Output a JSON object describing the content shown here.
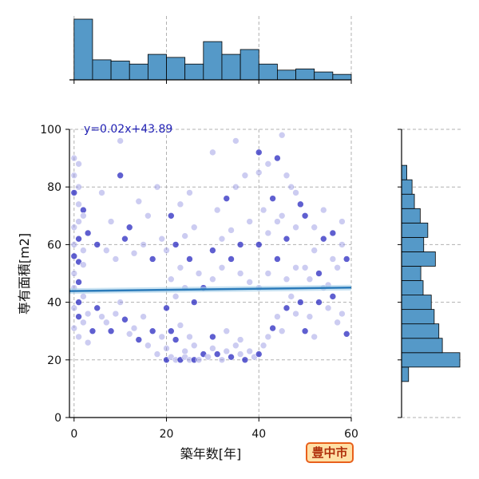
{
  "chart_data": {
    "type": "scatter",
    "xlabel": "築年数[年]",
    "ylabel": "専有面積[m2]",
    "xlim": [
      -1,
      60
    ],
    "ylim": [
      0,
      100
    ],
    "x_ticks": [
      0,
      20,
      40,
      60
    ],
    "y_ticks": [
      0,
      20,
      40,
      60,
      80,
      100
    ],
    "grid": true,
    "regression": {
      "equation": "y=0.02x+43.89",
      "slope": 0.02,
      "intercept": 43.89
    },
    "scatter_color": "#3b3bd4",
    "line_color": "#2b7bba",
    "hist_color": "#5599c8",
    "x_histogram": {
      "bin_edges": [
        0,
        4,
        8,
        12,
        16,
        20,
        24,
        28,
        32,
        36,
        40,
        44,
        48,
        52,
        56,
        60
      ],
      "relative_heights": [
        1.0,
        0.33,
        0.31,
        0.26,
        0.42,
        0.37,
        0.26,
        0.63,
        0.42,
        0.5,
        0.26,
        0.16,
        0.18,
        0.13,
        0.09
      ]
    },
    "y_histogram": {
      "bin_edges": [
        12.5,
        17.5,
        22.5,
        27.5,
        32.5,
        37.5,
        42.5,
        47.5,
        52.5,
        57.5,
        62.5,
        67.5,
        72.5,
        77.5,
        82.5,
        87.5
      ],
      "relative_widths": [
        0.12,
        1.0,
        0.7,
        0.64,
        0.56,
        0.51,
        0.37,
        0.33,
        0.58,
        0.38,
        0.45,
        0.32,
        0.22,
        0.18,
        0.09
      ]
    },
    "points": [
      [
        1,
        54
      ],
      [
        2,
        53
      ],
      [
        0,
        50
      ],
      [
        1,
        47
      ],
      [
        0,
        45
      ],
      [
        2,
        42
      ],
      [
        1,
        40
      ],
      [
        0,
        38
      ],
      [
        3,
        36
      ],
      [
        1,
        35
      ],
      [
        2,
        33
      ],
      [
        0,
        31
      ],
      [
        4,
        30
      ],
      [
        1,
        28
      ],
      [
        3,
        26
      ],
      [
        0,
        78
      ],
      [
        1,
        80
      ],
      [
        0,
        84
      ],
      [
        2,
        72
      ],
      [
        1,
        68
      ],
      [
        0,
        66
      ],
      [
        1,
        62
      ],
      [
        0,
        60
      ],
      [
        2,
        58
      ],
      [
        0,
        56
      ],
      [
        1,
        88
      ],
      [
        0,
        90
      ],
      [
        3,
        64
      ],
      [
        2,
        70
      ],
      [
        1,
        74
      ],
      [
        5,
        38
      ],
      [
        6,
        35
      ],
      [
        7,
        33
      ],
      [
        8,
        30
      ],
      [
        9,
        36
      ],
      [
        10,
        40
      ],
      [
        11,
        34
      ],
      [
        12,
        29
      ],
      [
        13,
        31
      ],
      [
        14,
        27
      ],
      [
        15,
        35
      ],
      [
        16,
        25
      ],
      [
        17,
        30
      ],
      [
        18,
        22
      ],
      [
        19,
        28
      ],
      [
        5,
        60
      ],
      [
        7,
        58
      ],
      [
        9,
        55
      ],
      [
        11,
        62
      ],
      [
        13,
        57
      ],
      [
        15,
        60
      ],
      [
        17,
        55
      ],
      [
        19,
        62
      ],
      [
        8,
        68
      ],
      [
        12,
        66
      ],
      [
        16,
        70
      ],
      [
        6,
        78
      ],
      [
        10,
        84
      ],
      [
        14,
        75
      ],
      [
        18,
        80
      ],
      [
        20,
        20
      ],
      [
        21,
        21
      ],
      [
        22,
        20
      ],
      [
        23,
        20
      ],
      [
        24,
        21
      ],
      [
        25,
        20
      ],
      [
        26,
        20
      ],
      [
        27,
        20
      ],
      [
        20,
        24
      ],
      [
        22,
        27
      ],
      [
        24,
        23
      ],
      [
        26,
        25
      ],
      [
        21,
        30
      ],
      [
        23,
        32
      ],
      [
        25,
        28
      ],
      [
        20,
        38
      ],
      [
        22,
        42
      ],
      [
        24,
        45
      ],
      [
        26,
        40
      ],
      [
        21,
        48
      ],
      [
        23,
        52
      ],
      [
        25,
        55
      ],
      [
        27,
        50
      ],
      [
        20,
        58
      ],
      [
        22,
        60
      ],
      [
        24,
        63
      ],
      [
        26,
        66
      ],
      [
        21,
        70
      ],
      [
        23,
        74
      ],
      [
        25,
        78
      ],
      [
        28,
        22
      ],
      [
        29,
        21
      ],
      [
        30,
        24
      ],
      [
        31,
        22
      ],
      [
        32,
        20
      ],
      [
        33,
        23
      ],
      [
        34,
        21
      ],
      [
        35,
        25
      ],
      [
        36,
        22
      ],
      [
        37,
        20
      ],
      [
        38,
        23
      ],
      [
        39,
        21
      ],
      [
        30,
        28
      ],
      [
        33,
        30
      ],
      [
        36,
        27
      ],
      [
        28,
        45
      ],
      [
        30,
        48
      ],
      [
        32,
        52
      ],
      [
        34,
        55
      ],
      [
        36,
        50
      ],
      [
        38,
        47
      ],
      [
        30,
        58
      ],
      [
        32,
        62
      ],
      [
        34,
        65
      ],
      [
        36,
        60
      ],
      [
        38,
        68
      ],
      [
        31,
        72
      ],
      [
        33,
        76
      ],
      [
        35,
        80
      ],
      [
        37,
        84
      ],
      [
        40,
        22
      ],
      [
        41,
        25
      ],
      [
        42,
        28
      ],
      [
        43,
        31
      ],
      [
        44,
        35
      ],
      [
        45,
        30
      ],
      [
        46,
        38
      ],
      [
        47,
        42
      ],
      [
        48,
        36
      ],
      [
        49,
        40
      ],
      [
        40,
        45
      ],
      [
        42,
        50
      ],
      [
        44,
        55
      ],
      [
        46,
        48
      ],
      [
        48,
        52
      ],
      [
        40,
        60
      ],
      [
        42,
        64
      ],
      [
        44,
        68
      ],
      [
        46,
        62
      ],
      [
        48,
        66
      ],
      [
        41,
        72
      ],
      [
        43,
        76
      ],
      [
        45,
        70
      ],
      [
        47,
        80
      ],
      [
        49,
        74
      ],
      [
        40,
        85
      ],
      [
        42,
        88
      ],
      [
        44,
        90
      ],
      [
        46,
        84
      ],
      [
        48,
        78
      ],
      [
        50,
        30
      ],
      [
        51,
        35
      ],
      [
        52,
        28
      ],
      [
        53,
        40
      ],
      [
        54,
        45
      ],
      [
        55,
        38
      ],
      [
        56,
        42
      ],
      [
        57,
        33
      ],
      [
        58,
        36
      ],
      [
        59,
        29
      ],
      [
        50,
        52
      ],
      [
        52,
        58
      ],
      [
        54,
        62
      ],
      [
        56,
        55
      ],
      [
        58,
        60
      ],
      [
        50,
        70
      ],
      [
        52,
        66
      ],
      [
        54,
        72
      ],
      [
        56,
        64
      ],
      [
        58,
        68
      ],
      [
        51,
        48
      ],
      [
        53,
        50
      ],
      [
        55,
        46
      ],
      [
        57,
        52
      ],
      [
        59,
        55
      ],
      [
        30,
        92
      ],
      [
        35,
        96
      ],
      [
        40,
        92
      ],
      [
        45,
        98
      ],
      [
        10,
        96
      ]
    ]
  },
  "badge": {
    "label": "豊中市"
  }
}
